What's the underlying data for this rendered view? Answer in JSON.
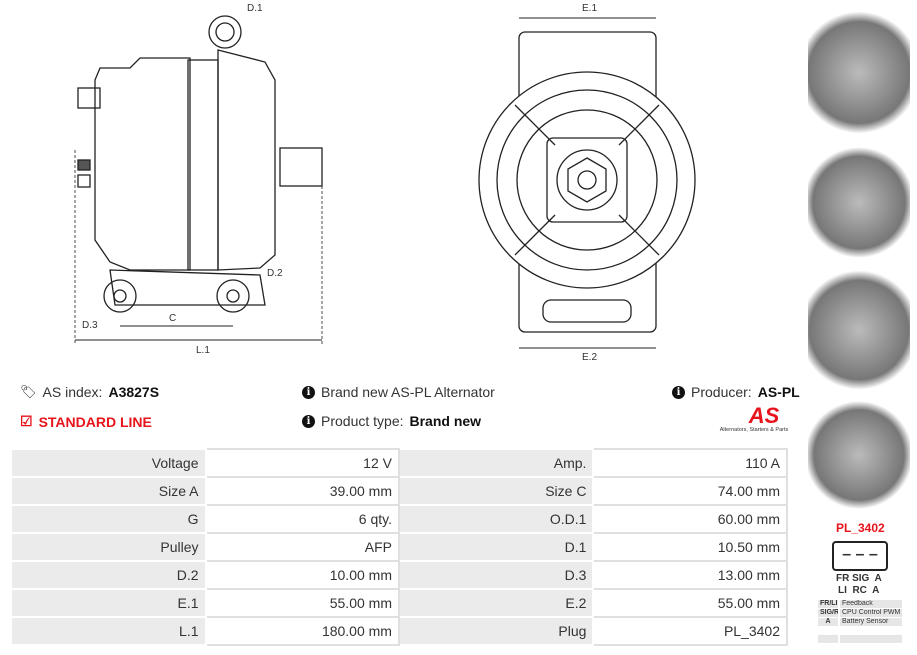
{
  "drawing_labels": {
    "d1": "D.1",
    "d2": "D.2",
    "d3": "D.3",
    "c": "C",
    "l1": "L.1",
    "e1": "E.1",
    "e2": "E.2"
  },
  "info": {
    "as_index_label": "AS index:",
    "as_index": "A3827S",
    "line": "STANDARD LINE",
    "brand_text": "Brand new AS-PL Alternator",
    "product_type_label": "Product type:",
    "product_type": "Brand new",
    "producer_label": "Producer:",
    "producer": "AS-PL",
    "logo_text": "AS",
    "logo_tagline": "Alternators, Starters & Parts"
  },
  "specs": [
    [
      "Voltage",
      "12 V",
      "Amp.",
      "110 A"
    ],
    [
      "Size A",
      "39.00 mm",
      "Size C",
      "74.00 mm"
    ],
    [
      "G",
      "6 qty.",
      "O.D.1",
      "60.00 mm"
    ],
    [
      "Pulley",
      "AFP",
      "D.1",
      "10.50 mm"
    ],
    [
      "D.2",
      "10.00 mm",
      "D.3",
      "13.00 mm"
    ],
    [
      "E.1",
      "55.00 mm",
      "E.2",
      "55.00 mm"
    ],
    [
      "L.1",
      "180.00 mm",
      "Plug",
      "PL_3402"
    ]
  ],
  "plug": {
    "name": "PL_3402",
    "pins_top": "FR SIG  A",
    "pins_bottom": "LI  RC  A",
    "legend": [
      [
        "FR/LI",
        "Feedback"
      ],
      [
        "SIG/RC",
        "CPU Control PWM"
      ],
      [
        "A",
        "Battery Sensor"
      ],
      [
        "",
        ""
      ]
    ]
  },
  "colors": {
    "accent": "#e8141b"
  }
}
